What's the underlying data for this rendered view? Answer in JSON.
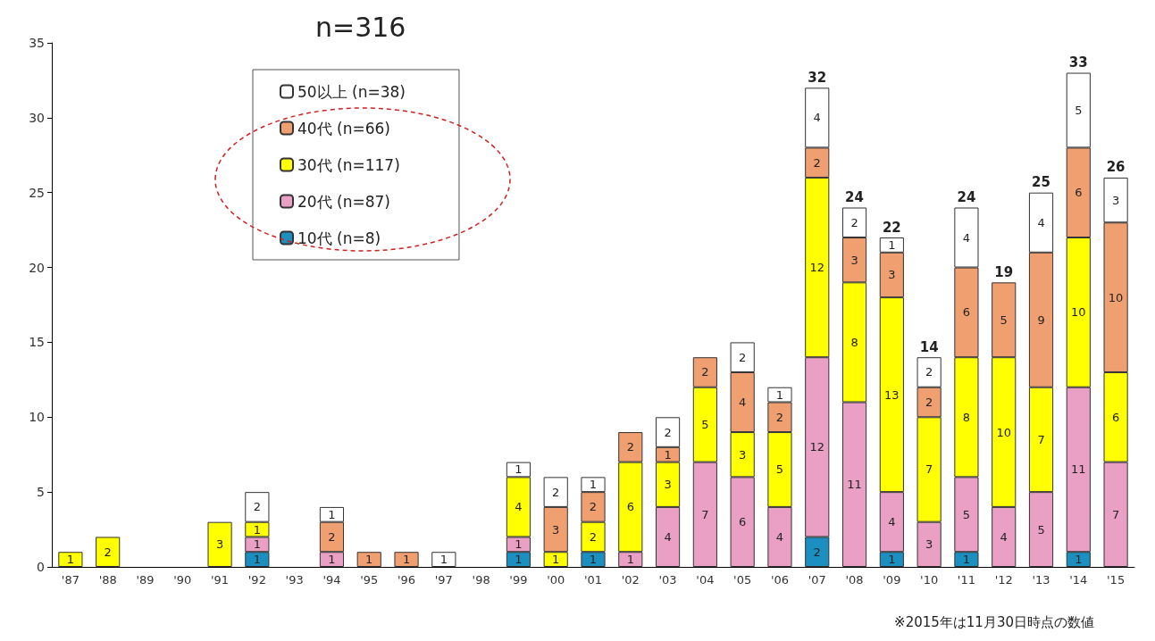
{
  "chart_data": {
    "type": "bar",
    "title": "n=316",
    "stacked": true,
    "data_labels": true,
    "legend": "top left",
    "grid": false,
    "categories": [
      "'87",
      "'88",
      "'89",
      "'90",
      "'91",
      "'92",
      "'93",
      "'94",
      "'95",
      "'96",
      "'97",
      "'98",
      "'99",
      "'00",
      "'01",
      "'02",
      "'03",
      "'04",
      "'05",
      "'06",
      "'07",
      "'08",
      "'09",
      "'10",
      "'11",
      "'12",
      "'13",
      "'14",
      "'15"
    ],
    "series": [
      {
        "name": "10代 (n=8)",
        "color": "#1a8fc0",
        "values": [
          null,
          null,
          null,
          null,
          null,
          1,
          null,
          null,
          null,
          null,
          null,
          null,
          1,
          null,
          1,
          null,
          null,
          null,
          null,
          null,
          2,
          null,
          1,
          null,
          1,
          null,
          null,
          1,
          null
        ]
      },
      {
        "name": "20代 (n=87)",
        "color": "#eaa0c4",
        "values": [
          null,
          null,
          null,
          null,
          null,
          1,
          null,
          1,
          null,
          null,
          null,
          null,
          1,
          null,
          null,
          1,
          4,
          7,
          6,
          4,
          12,
          11,
          4,
          3,
          5,
          4,
          5,
          11,
          7
        ]
      },
      {
        "name": "30代 (n=117)",
        "color": "#ffff00",
        "values": [
          1,
          2,
          null,
          null,
          3,
          1,
          null,
          null,
          null,
          null,
          null,
          null,
          4,
          1,
          2,
          6,
          3,
          5,
          3,
          5,
          12,
          8,
          13,
          7,
          8,
          10,
          7,
          10,
          6
        ]
      },
      {
        "name": "40代 (n=66)",
        "color": "#f0a070",
        "values": [
          null,
          null,
          null,
          null,
          null,
          null,
          null,
          2,
          1,
          1,
          null,
          null,
          null,
          3,
          2,
          2,
          1,
          2,
          4,
          2,
          2,
          3,
          3,
          2,
          6,
          5,
          9,
          6,
          10
        ]
      },
      {
        "name": "50以上 (n=38)",
        "color": "#ffffff",
        "values": [
          null,
          null,
          null,
          null,
          null,
          2,
          null,
          1,
          null,
          null,
          1,
          null,
          1,
          2,
          1,
          null,
          2,
          null,
          2,
          1,
          4,
          2,
          1,
          2,
          4,
          null,
          4,
          5,
          3
        ]
      }
    ],
    "totals": [
      null,
      null,
      null,
      null,
      null,
      null,
      null,
      null,
      null,
      null,
      null,
      null,
      null,
      null,
      null,
      null,
      null,
      null,
      null,
      null,
      "32",
      "24",
      "22",
      "14",
      "24",
      "19",
      "25",
      "33",
      "26"
    ],
    "ylim": [
      0,
      35
    ],
    "yticks": [
      0,
      5,
      10,
      15,
      20,
      25,
      30,
      35
    ],
    "annotations": [
      "※2015年は11月30日時点の数値"
    ]
  }
}
